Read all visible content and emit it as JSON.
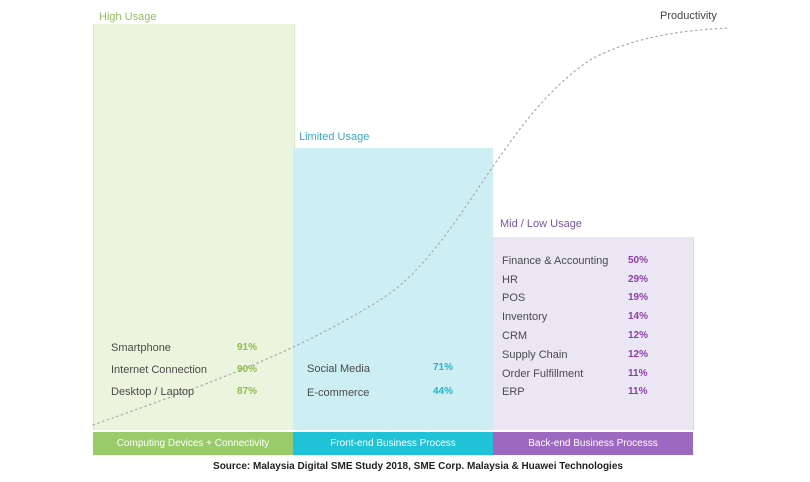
{
  "chart_data": {
    "type": "bar",
    "categories": [
      "High Usage",
      "Limited Usage",
      "Mid / Low Usage"
    ],
    "groups": [
      {
        "title": "High Usage",
        "band_label": "Computing Devices + Connectivity",
        "color": "#99cb6a",
        "items": [
          {
            "label": "Smartphone",
            "value": "91%"
          },
          {
            "label": "Internet Connection",
            "value": "90%"
          },
          {
            "label": "Desktop / Laptop",
            "value": "87%"
          }
        ]
      },
      {
        "title": "Limited Usage",
        "band_label": "Front-end Business Process",
        "color": "#1fc2d6",
        "items": [
          {
            "label": "Social Media",
            "value": "71%"
          },
          {
            "label": "E-commerce",
            "value": "44%"
          }
        ]
      },
      {
        "title": "Mid / Low Usage",
        "band_label": "Back-end Business Processs",
        "color": "#9d68c0",
        "items": [
          {
            "label": "Finance & Accounting",
            "value": "50%"
          },
          {
            "label": "HR",
            "value": "29%"
          },
          {
            "label": "POS",
            "value": "19%"
          },
          {
            "label": "Inventory",
            "value": "14%"
          },
          {
            "label": "CRM",
            "value": "12%"
          },
          {
            "label": "Supply Chain",
            "value": "12%"
          },
          {
            "label": "Order Fulfillment",
            "value": "11%"
          },
          {
            "label": "ERP",
            "value": "11%"
          }
        ]
      }
    ],
    "curve_label": "Productivity",
    "source": "Source: Malaysia Digital SME Study 2018, SME Corp. Malaysia & Huawei Technologies"
  }
}
